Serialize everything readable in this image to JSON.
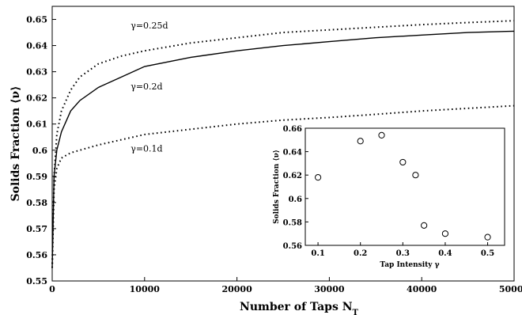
{
  "chart_data": [
    {
      "type": "line",
      "title": "",
      "xlabel": "Number of Taps N",
      "xlabel_sub": "T",
      "ylabel": "Solids Fraction ⟨ν⟩",
      "xlim": [
        0,
        50000
      ],
      "ylim": [
        0.55,
        0.655
      ],
      "xticks": [
        0,
        10000,
        20000,
        30000,
        40000,
        50000
      ],
      "xtick_labels": [
        "0",
        "10000",
        "20000",
        "30000",
        "40000",
        "50000"
      ],
      "yticks": [
        0.55,
        0.56,
        0.57,
        0.58,
        0.59,
        0.6,
        0.61,
        0.62,
        0.63,
        0.64,
        0.65
      ],
      "ytick_labels": [
        "0.55",
        "0.56",
        "0.57",
        "0.58",
        "0.59",
        "0.6",
        "0.61",
        "0.62",
        "0.63",
        "0.64",
        "0.65"
      ],
      "grid": false,
      "legend": "none",
      "series": [
        {
          "name": "γ=0.25d",
          "style": "dotted",
          "x": [
            0,
            200,
            500,
            1000,
            2000,
            3000,
            5000,
            7500,
            10000,
            15000,
            20000,
            25000,
            30000,
            35000,
            40000,
            45000,
            50000
          ],
          "y": [
            0.555,
            0.59,
            0.606,
            0.615,
            0.623,
            0.628,
            0.633,
            0.636,
            0.638,
            0.641,
            0.643,
            0.645,
            0.646,
            0.647,
            0.648,
            0.6488,
            0.6495
          ]
        },
        {
          "name": "γ=0.2d",
          "style": "solid",
          "x": [
            0,
            200,
            500,
            1000,
            2000,
            3000,
            5000,
            7500,
            10000,
            15000,
            20000,
            25000,
            30000,
            35000,
            40000,
            45000,
            50000
          ],
          "y": [
            0.555,
            0.59,
            0.6,
            0.607,
            0.615,
            0.619,
            0.624,
            0.628,
            0.632,
            0.6355,
            0.638,
            0.64,
            0.6415,
            0.643,
            0.644,
            0.645,
            0.6455
          ]
        },
        {
          "name": "γ=0.1d",
          "style": "dotted",
          "x": [
            0,
            200,
            500,
            1000,
            2000,
            3000,
            5000,
            7500,
            10000,
            15000,
            20000,
            25000,
            30000,
            35000,
            40000,
            45000,
            50000
          ],
          "y": [
            0.555,
            0.585,
            0.593,
            0.597,
            0.599,
            0.6,
            0.602,
            0.604,
            0.606,
            0.608,
            0.61,
            0.6115,
            0.6125,
            0.6137,
            0.615,
            0.616,
            0.617
          ]
        }
      ],
      "annotations": [
        {
          "text": "γ=0.25d",
          "x": 8500,
          "y": 0.6465
        },
        {
          "text": "γ=0.2d",
          "x": 8500,
          "y": 0.6233
        },
        {
          "text": "γ=0.1d",
          "x": 8500,
          "y": 0.5995
        }
      ]
    },
    {
      "type": "scatter",
      "title": "",
      "xlabel": "Tap Intensity γ",
      "ylabel": "Solids Fraction ⟨ν⟩",
      "xlim": [
        0.07,
        0.54
      ],
      "ylim": [
        0.56,
        0.66
      ],
      "xticks": [
        0.1,
        0.2,
        0.3,
        0.4,
        0.5
      ],
      "xtick_labels": [
        "0.1",
        "0.2",
        "0.3",
        "0.4",
        "0.5"
      ],
      "yticks": [
        0.56,
        0.58,
        0.6,
        0.62,
        0.64,
        0.66
      ],
      "ytick_labels": [
        "0.56",
        "0.58",
        "0.6",
        "0.62",
        "0.64",
        "0.66"
      ],
      "grid": false,
      "legend": "none",
      "marker": "open-circle",
      "points": [
        {
          "x": 0.1,
          "y": 0.618
        },
        {
          "x": 0.2,
          "y": 0.649
        },
        {
          "x": 0.25,
          "y": 0.654
        },
        {
          "x": 0.3,
          "y": 0.631
        },
        {
          "x": 0.33,
          "y": 0.62
        },
        {
          "x": 0.35,
          "y": 0.577
        },
        {
          "x": 0.4,
          "y": 0.57
        },
        {
          "x": 0.5,
          "y": 0.567
        }
      ]
    }
  ]
}
